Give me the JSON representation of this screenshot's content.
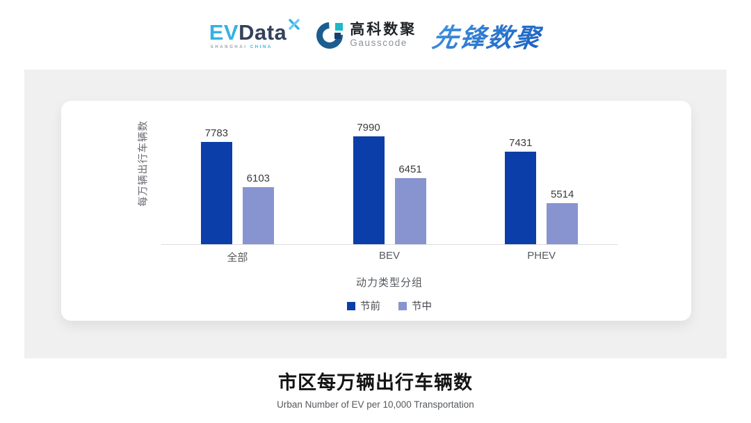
{
  "header": {
    "evdata_logo": {
      "ev": "EV",
      "data": "Data",
      "sub_left": "SHANGHAI",
      "sub_right": "CHINA"
    },
    "gausscode_logo": {
      "cn": "高科数聚",
      "en": "Gausscode"
    },
    "pioneer_logo": {
      "text": "先锋数聚"
    }
  },
  "chart_data": {
    "type": "bar",
    "categories": [
      "全部",
      "BEV",
      "PHEV"
    ],
    "series": [
      {
        "name": "节前",
        "color": "#0b3ea8",
        "values": [
          7783,
          7990,
          7431
        ]
      },
      {
        "name": "节中",
        "color": "#8894d0",
        "values": [
          6103,
          6451,
          5514
        ]
      }
    ],
    "title": "市区每万辆出行车辆数",
    "xlabel": "动力类型分组",
    "ylabel": "每万辆出行车辆数",
    "ylim": [
      4000,
      8200
    ],
    "grid": false,
    "legend_position": "bottom",
    "data_labels": true
  },
  "footer": {
    "title": "市区每万辆出行车辆数",
    "subtitle": "Urban Number of EV per 10,000 Transportation"
  },
  "colors": {
    "pre_festival_bar": "#0b3ea8",
    "mid_festival_bar": "#8894d0",
    "panel_background": "#f0f0f1",
    "card_background": "#ffffff",
    "axis_line": "#dcdcdc"
  }
}
